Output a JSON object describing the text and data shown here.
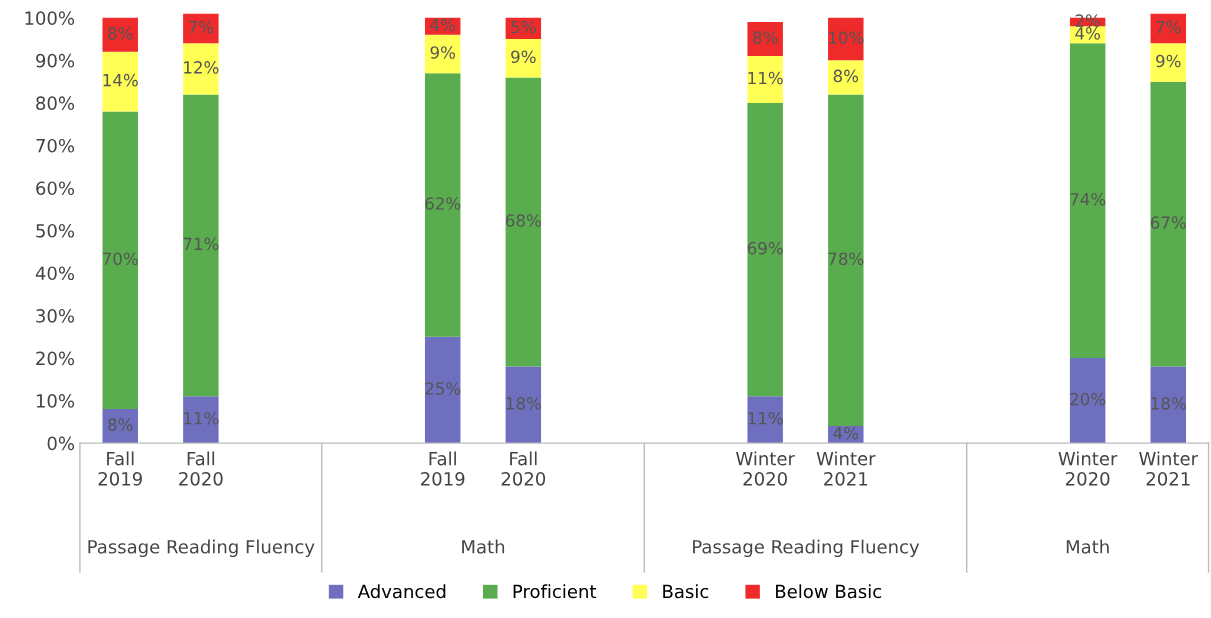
{
  "chart_data": {
    "type": "bar",
    "stacked": true,
    "categories": [
      "Fall\n2019",
      "Fall\n2020",
      null,
      null,
      "Fall\n2019",
      "Fall\n2020",
      null,
      null,
      "Winter\n2020",
      "Winter\n2021",
      null,
      null,
      "Winter\n2020",
      "Winter\n2021"
    ],
    "series": [
      {
        "name": "Advanced",
        "color": "#6f6fbf",
        "values": [
          8,
          11,
          null,
          null,
          25,
          18,
          null,
          null,
          11,
          4,
          null,
          null,
          20,
          18
        ],
        "value_labels": [
          "8%",
          "11%",
          null,
          null,
          "25%",
          "18%",
          null,
          null,
          "11%",
          "4%",
          null,
          null,
          "20%",
          "18%"
        ]
      },
      {
        "name": "Proficient",
        "color": "#5aad4e",
        "values": [
          70,
          71,
          null,
          null,
          62,
          68,
          null,
          null,
          69,
          78,
          null,
          null,
          74,
          67
        ],
        "value_labels": [
          "70%",
          "71%",
          null,
          null,
          "62%",
          "68%",
          null,
          null,
          "69%",
          "78%",
          null,
          null,
          "74%",
          "67%"
        ]
      },
      {
        "name": "Basic",
        "color": "#ffff55",
        "values": [
          14,
          12,
          null,
          null,
          9,
          9,
          null,
          null,
          11,
          8,
          null,
          null,
          4,
          9
        ],
        "value_labels": [
          "14%",
          "12%",
          null,
          null,
          "9%",
          "9%",
          null,
          null,
          "11%",
          "8%",
          null,
          null,
          "4%",
          "9%"
        ]
      },
      {
        "name": "Below Basic",
        "color": "#ee2a2a",
        "values": [
          8,
          7,
          null,
          null,
          4,
          5,
          null,
          null,
          8,
          10,
          null,
          null,
          2,
          7
        ],
        "value_labels": [
          "8%",
          "7%",
          null,
          null,
          "4%",
          "5%",
          null,
          null,
          "8%",
          "10%",
          null,
          null,
          "2%",
          "7%"
        ]
      }
    ],
    "ylim": [
      0,
      101
    ],
    "yticks": [
      {
        "value": 0,
        "label": "0%"
      },
      {
        "value": 10,
        "label": "10%"
      },
      {
        "value": 20,
        "label": "20%"
      },
      {
        "value": 30,
        "label": "30%"
      },
      {
        "value": 40,
        "label": "40%"
      },
      {
        "value": 50,
        "label": "50%"
      },
      {
        "value": 60,
        "label": "60%"
      },
      {
        "value": 70,
        "label": "70%"
      },
      {
        "value": 80,
        "label": "80%"
      },
      {
        "value": 90,
        "label": "90%"
      },
      {
        "value": 100,
        "label": "100%"
      }
    ],
    "annotations": [
      "Passage Reading Fluency",
      "Math",
      "Passage Reading Fluency",
      "Math"
    ],
    "legend": "bottom",
    "grid": false
  }
}
